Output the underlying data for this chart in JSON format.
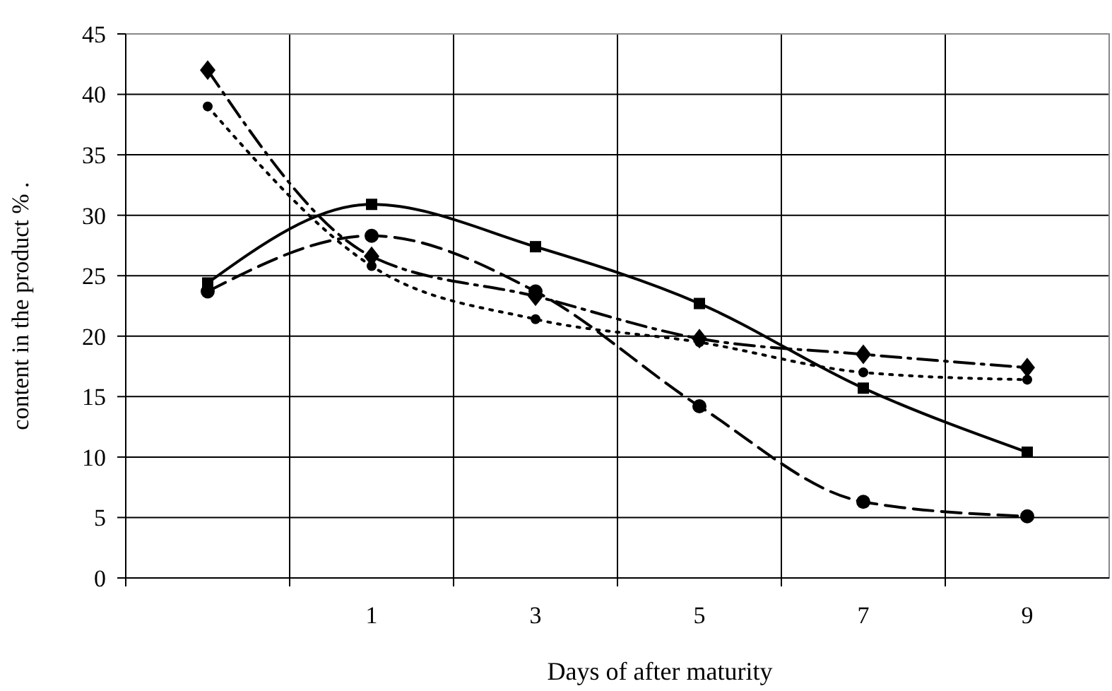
{
  "chart_data": {
    "type": "line",
    "xlabel": "Days of after maturity",
    "ylabel": "content in the product % .",
    "categories": [
      null,
      "1",
      "3",
      "5",
      "7",
      "9"
    ],
    "series": [
      {
        "color": "#000000",
        "marker": "square",
        "line_style": "solid",
        "values": [
          24.4,
          30.9,
          27.4,
          22.7,
          15.7,
          10.4
        ]
      },
      {
        "color": "#000000",
        "marker": "circle",
        "line_style": "dashed",
        "values": [
          23.7,
          28.3,
          23.7,
          14.2,
          6.3,
          5.1
        ]
      },
      {
        "color": "#000000",
        "marker": "diamond",
        "line_style": "dashed",
        "values": [
          42,
          26.6,
          23.3,
          19.8,
          18.5,
          17.4
        ]
      },
      {
        "color": "#000000",
        "marker": "circle",
        "line_style": "dotted",
        "values": [
          39,
          25.8,
          21.4,
          19.5,
          17,
          16.4
        ]
      }
    ],
    "ylim": [
      0,
      45
    ],
    "yticks": [
      0,
      5,
      10,
      15,
      20,
      25,
      30,
      35,
      40,
      45
    ],
    "grid": true
  }
}
